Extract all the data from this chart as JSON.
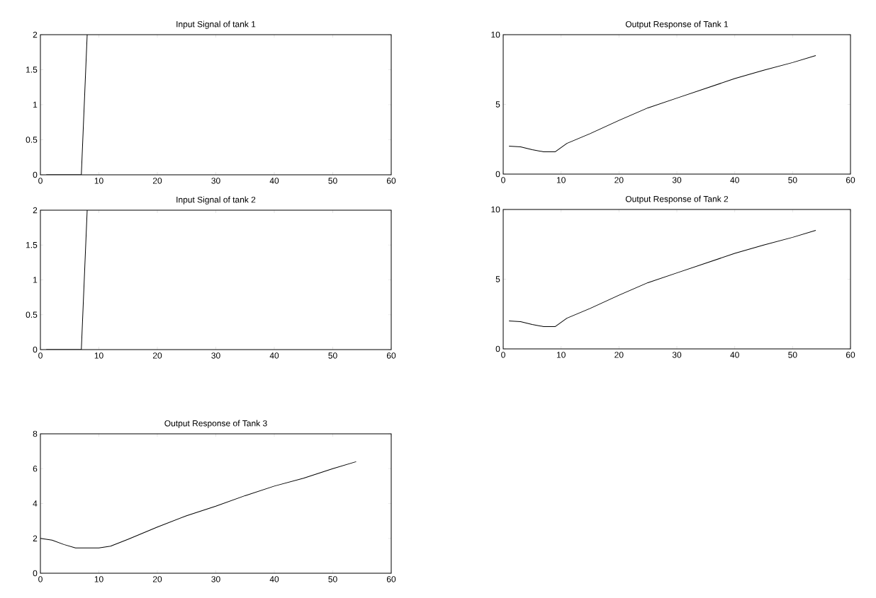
{
  "chart_data": [
    {
      "type": "line",
      "title": "Input Signal of tank 1",
      "color": "#000000",
      "x": [
        1,
        7,
        7.3,
        7.6,
        8
      ],
      "values": [
        0,
        0,
        0.6,
        1.2,
        2
      ],
      "xlim": [
        0,
        60
      ],
      "ylim": [
        0,
        2
      ],
      "xticks": [
        0,
        10,
        20,
        30,
        40,
        50,
        60
      ],
      "yticks": [
        0,
        0.5,
        1,
        1.5,
        2
      ]
    },
    {
      "type": "line",
      "title": "Output Response of Tank 1",
      "color": "#000000",
      "x": [
        1,
        3,
        5,
        7,
        9,
        11,
        15,
        20,
        25,
        30,
        35,
        40,
        45,
        50,
        54
      ],
      "values": [
        2.0,
        1.95,
        1.75,
        1.6,
        1.6,
        2.2,
        2.9,
        3.85,
        4.75,
        5.45,
        6.15,
        6.85,
        7.45,
        8.0,
        8.5
      ],
      "xlim": [
        0,
        60
      ],
      "ylim": [
        0,
        10
      ],
      "xticks": [
        0,
        10,
        20,
        30,
        40,
        50,
        60
      ],
      "yticks": [
        0,
        5,
        10
      ]
    },
    {
      "type": "line",
      "title": "Input Signal of tank 2",
      "color": "#000000",
      "x": [
        1,
        7,
        7.3,
        7.6,
        8
      ],
      "values": [
        0,
        0,
        0.6,
        1.2,
        2
      ],
      "xlim": [
        0,
        60
      ],
      "ylim": [
        0,
        2
      ],
      "xticks": [
        0,
        10,
        20,
        30,
        40,
        50,
        60
      ],
      "yticks": [
        0,
        0.5,
        1,
        1.5,
        2
      ]
    },
    {
      "type": "line",
      "title": "Output Response of Tank 2",
      "color": "#000000",
      "x": [
        1,
        3,
        5,
        7,
        9,
        11,
        15,
        20,
        25,
        30,
        35,
        40,
        45,
        50,
        54
      ],
      "values": [
        2.0,
        1.95,
        1.75,
        1.6,
        1.6,
        2.2,
        2.9,
        3.85,
        4.75,
        5.45,
        6.15,
        6.85,
        7.45,
        8.0,
        8.5
      ],
      "xlim": [
        0,
        60
      ],
      "ylim": [
        0,
        10
      ],
      "xticks": [
        0,
        10,
        20,
        30,
        40,
        50,
        60
      ],
      "yticks": [
        0,
        5,
        10
      ]
    },
    {
      "type": "line",
      "title": "Output Response of Tank 3",
      "color": "#000000",
      "x": [
        0,
        2,
        4,
        6,
        8,
        10,
        12,
        15,
        20,
        25,
        30,
        35,
        40,
        45,
        50,
        54
      ],
      "values": [
        2.0,
        1.9,
        1.65,
        1.45,
        1.45,
        1.45,
        1.55,
        1.95,
        2.65,
        3.3,
        3.85,
        4.45,
        5.0,
        5.45,
        6.0,
        6.4
      ],
      "xlim": [
        0,
        60
      ],
      "ylim": [
        0,
        8
      ],
      "xticks": [
        0,
        10,
        20,
        30,
        40,
        50,
        60
      ],
      "yticks": [
        0,
        2,
        4,
        6,
        8
      ]
    }
  ]
}
